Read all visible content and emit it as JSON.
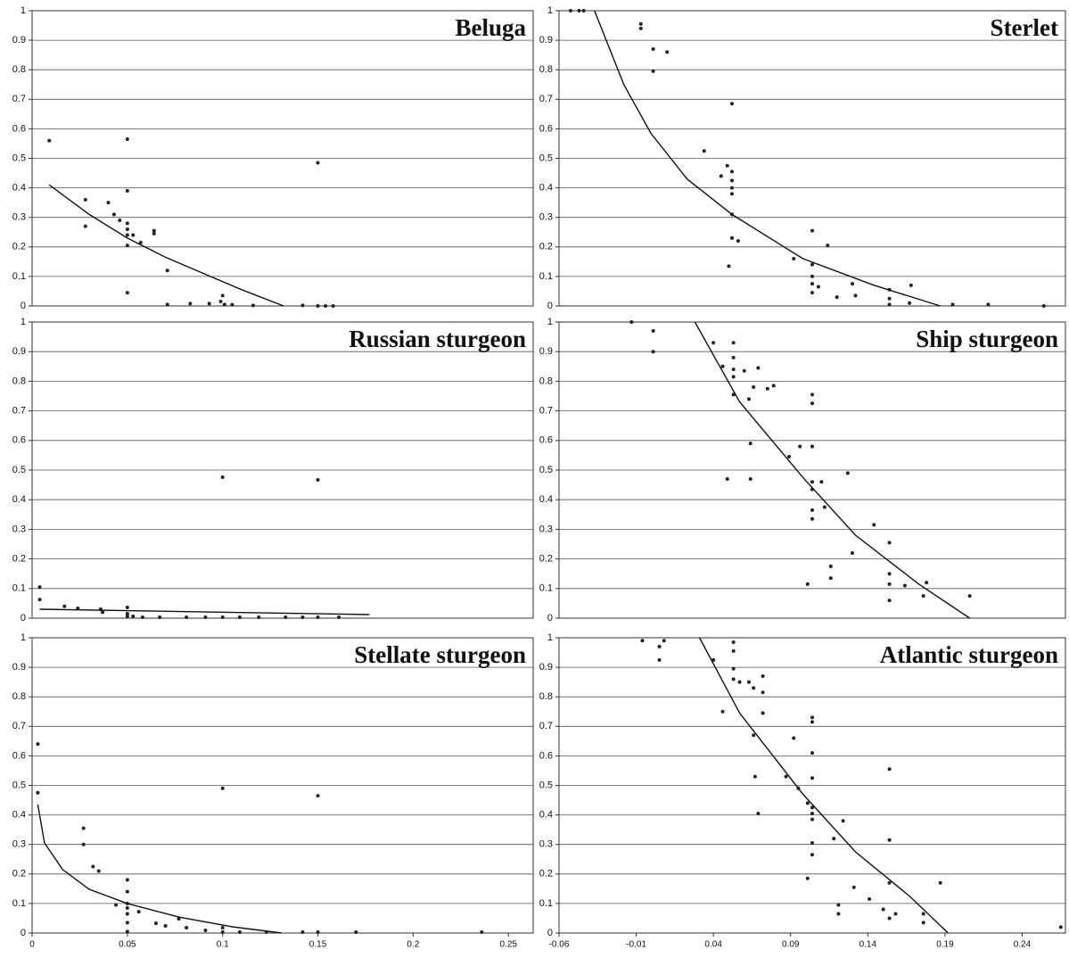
{
  "chart_data": [
    {
      "type": "scatter",
      "title": "Beluga",
      "color": "#222222",
      "fit_color": "#111111",
      "x": [
        0.009,
        0.028,
        0.028,
        0.04,
        0.043,
        0.046,
        0.05,
        0.05,
        0.05,
        0.05,
        0.05,
        0.05,
        0.05,
        0.053,
        0.057,
        0.064,
        0.064,
        0.071,
        0.071,
        0.083,
        0.093,
        0.099,
        0.1,
        0.101,
        0.105,
        0.116,
        0.142,
        0.15,
        0.15,
        0.154,
        0.158
      ],
      "values": [
        0.56,
        0.36,
        0.27,
        0.35,
        0.31,
        0.29,
        0.565,
        0.39,
        0.28,
        0.26,
        0.24,
        0.205,
        0.045,
        0.24,
        0.215,
        0.255,
        0.245,
        0.12,
        0.005,
        0.008,
        0.008,
        0.015,
        0.035,
        0.005,
        0.004,
        0.002,
        0.002,
        0.485,
        0,
        0,
        0
      ],
      "fit_x": [
        0.009,
        0.03,
        0.05,
        0.07,
        0.09,
        0.11,
        0.132
      ],
      "fit_values": [
        0.41,
        0.31,
        0.23,
        0.165,
        0.11,
        0.055,
        0
      ],
      "xlim": [
        0,
        0.263
      ],
      "ylim": [
        0,
        1
      ],
      "yticks": [
        0,
        0.1,
        0.2,
        0.3,
        0.4,
        0.5,
        0.6,
        0.7,
        0.8,
        0.9,
        1
      ],
      "grid": true
    },
    {
      "type": "scatter",
      "title": "Sterlet",
      "color": "#222222",
      "fit_color": "#111111",
      "x": [
        -0.0525,
        -0.047,
        -0.044,
        -0.007,
        -0.007,
        0.001,
        0.001,
        0.01,
        0.034,
        0.045,
        0.049,
        0.052,
        0.052,
        0.052,
        0.052,
        0.052,
        0.052,
        0.052,
        0.05,
        0.056,
        0.092,
        0.104,
        0.104,
        0.104,
        0.104,
        0.104,
        0.108,
        0.114,
        0.12,
        0.13,
        0.132,
        0.154,
        0.154,
        0.154,
        0.167,
        0.168,
        0.195,
        0.218,
        0.254
      ],
      "values": [
        1,
        1,
        1,
        0.955,
        0.94,
        0.87,
        0.795,
        0.86,
        0.525,
        0.44,
        0.475,
        0.685,
        0.455,
        0.425,
        0.4,
        0.38,
        0.31,
        0.23,
        0.135,
        0.22,
        0.16,
        0.255,
        0.14,
        0.1,
        0.075,
        0.045,
        0.065,
        0.205,
        0.03,
        0.075,
        0.035,
        0.055,
        0.025,
        0.005,
        0.01,
        0.07,
        0.005,
        0.005,
        0
      ],
      "fit_x": [
        -0.037,
        -0.018,
        -0.0005,
        0.023,
        0.052,
        0.098,
        0.144,
        0.187
      ],
      "fit_values": [
        1,
        0.75,
        0.585,
        0.43,
        0.31,
        0.16,
        0.07,
        0
      ],
      "xlim": [
        -0.06,
        0.268
      ],
      "ylim": [
        0,
        1
      ],
      "yticks": [
        0,
        0.1,
        0.2,
        0.3,
        0.4,
        0.5,
        0.6,
        0.7,
        0.8,
        0.9,
        1
      ],
      "grid": true
    },
    {
      "type": "scatter",
      "title": "Russian sturgeon",
      "color": "#222222",
      "fit_color": "#111111",
      "x": [
        0.004,
        0.004,
        0.017,
        0.024,
        0.036,
        0.037,
        0.05,
        0.05,
        0.05,
        0.053,
        0.058,
        0.067,
        0.081,
        0.091,
        0.1,
        0.1,
        0.109,
        0.119,
        0.133,
        0.142,
        0.15,
        0.15,
        0.161
      ],
      "values": [
        0.105,
        0.063,
        0.04,
        0.033,
        0.03,
        0.02,
        0.036,
        0.015,
        0.006,
        0.006,
        0.003,
        0.003,
        0.003,
        0.003,
        0.476,
        0.003,
        0.003,
        0.003,
        0.003,
        0.003,
        0.467,
        0.003,
        0.003
      ],
      "fit_x": [
        0.004,
        0.177
      ],
      "fit_values": [
        0.03,
        0.012
      ],
      "xlim": [
        0,
        0.263
      ],
      "ylim": [
        0,
        1
      ],
      "yticks": [
        0,
        0.1,
        0.2,
        0.3,
        0.4,
        0.5,
        0.6,
        0.7,
        0.8,
        0.9,
        1
      ],
      "grid": true
    },
    {
      "type": "scatter",
      "title": "Ship sturgeon",
      "color": "#222222",
      "fit_color": "#111111",
      "x": [
        -0.013,
        0.001,
        0.001,
        0.04,
        0.046,
        0.053,
        0.053,
        0.053,
        0.053,
        0.053,
        0.06,
        0.063,
        0.066,
        0.069,
        0.075,
        0.079,
        0.049,
        0.064,
        0.064,
        0.089,
        0.096,
        0.104,
        0.104,
        0.104,
        0.104,
        0.104,
        0.104,
        0.104,
        0.11,
        0.112,
        0.101,
        0.116,
        0.116,
        0.127,
        0.13,
        0.144,
        0.154,
        0.154,
        0.154,
        0.154,
        0.164,
        0.178,
        0.176,
        0.206
      ],
      "values": [
        1,
        0.97,
        0.9,
        0.93,
        0.85,
        0.93,
        0.88,
        0.84,
        0.815,
        0.755,
        0.835,
        0.74,
        0.78,
        0.845,
        0.775,
        0.785,
        0.47,
        0.47,
        0.59,
        0.545,
        0.58,
        0.755,
        0.725,
        0.58,
        0.46,
        0.435,
        0.365,
        0.335,
        0.46,
        0.375,
        0.115,
        0.175,
        0.135,
        0.49,
        0.22,
        0.315,
        0.255,
        0.15,
        0.115,
        0.06,
        0.11,
        0.12,
        0.075,
        0.075
      ],
      "fit_x": [
        0.028,
        0.057,
        0.098,
        0.132,
        0.173,
        0.206
      ],
      "fit_values": [
        1,
        0.73,
        0.475,
        0.28,
        0.115,
        0
      ],
      "xlim": [
        -0.06,
        0.268
      ],
      "ylim": [
        0,
        1
      ],
      "yticks": [
        0,
        0.1,
        0.2,
        0.3,
        0.4,
        0.5,
        0.6,
        0.7,
        0.8,
        0.9,
        1
      ],
      "grid": true
    },
    {
      "type": "scatter",
      "title": "Stellate sturgeon",
      "color": "#222222",
      "fit_color": "#111111",
      "x": [
        0.003,
        0.003,
        0.027,
        0.027,
        0.032,
        0.035,
        0.044,
        0.05,
        0.05,
        0.05,
        0.05,
        0.05,
        0.05,
        0.05,
        0.056,
        0.065,
        0.07,
        0.077,
        0.081,
        0.091,
        0.1,
        0.1,
        0.1,
        0.109,
        0.123,
        0.142,
        0.15,
        0.15,
        0.17,
        0.236
      ],
      "values": [
        0.64,
        0.475,
        0.355,
        0.3,
        0.225,
        0.21,
        0.095,
        0.18,
        0.14,
        0.1,
        0.085,
        0.065,
        0.035,
        0.005,
        0.072,
        0.033,
        0.024,
        0.048,
        0.018,
        0.009,
        0.49,
        0.018,
        0.003,
        0.003,
        0.003,
        0.003,
        0.465,
        0.003,
        0.003,
        0.003
      ],
      "fit_x": [
        0.003,
        0.0065,
        0.016,
        0.03,
        0.05,
        0.077,
        0.105,
        0.131
      ],
      "fit_values": [
        0.435,
        0.305,
        0.215,
        0.148,
        0.1,
        0.054,
        0.021,
        0
      ],
      "xlim": [
        0,
        0.263
      ],
      "ylim": [
        0,
        1
      ],
      "yticks": [
        0,
        0.1,
        0.2,
        0.3,
        0.4,
        0.5,
        0.6,
        0.7,
        0.8,
        0.9,
        1
      ],
      "xticks": [
        0,
        0.05,
        0.1,
        0.15,
        0.2,
        0.25
      ],
      "grid": true
    },
    {
      "type": "scatter",
      "title": "Atlantic sturgeon",
      "color": "#222222",
      "fit_color": "#111111",
      "x": [
        -0.006,
        0.005,
        0.005,
        0.008,
        0.04,
        0.046,
        0.053,
        0.053,
        0.053,
        0.053,
        0.057,
        0.063,
        0.066,
        0.072,
        0.072,
        0.072,
        0.066,
        0.067,
        0.069,
        0.092,
        0.087,
        0.095,
        0.101,
        0.104,
        0.104,
        0.104,
        0.104,
        0.104,
        0.104,
        0.104,
        0.104,
        0.104,
        0.101,
        0.118,
        0.124,
        0.121,
        0.121,
        0.131,
        0.141,
        0.15,
        0.154,
        0.154,
        0.154,
        0.154,
        0.158,
        0.176,
        0.176,
        0.187,
        0.265
      ],
      "values": [
        0.99,
        0.97,
        0.925,
        0.99,
        0.925,
        0.75,
        0.985,
        0.955,
        0.895,
        0.86,
        0.85,
        0.85,
        0.83,
        0.87,
        0.815,
        0.745,
        0.67,
        0.53,
        0.405,
        0.66,
        0.53,
        0.49,
        0.44,
        0.73,
        0.715,
        0.61,
        0.525,
        0.425,
        0.405,
        0.385,
        0.305,
        0.265,
        0.185,
        0.32,
        0.38,
        0.095,
        0.065,
        0.155,
        0.115,
        0.08,
        0.555,
        0.315,
        0.17,
        0.05,
        0.065,
        0.065,
        0.035,
        0.17,
        0.02
      ],
      "fit_x": [
        0.031,
        0.057,
        0.098,
        0.132,
        0.167,
        0.192
      ],
      "fit_values": [
        1,
        0.745,
        0.47,
        0.275,
        0.125,
        0
      ],
      "xlim": [
        -0.06,
        0.268
      ],
      "ylim": [
        0,
        1
      ],
      "yticks": [
        0,
        0.1,
        0.2,
        0.3,
        0.4,
        0.5,
        0.6,
        0.7,
        0.8,
        0.9,
        1
      ],
      "xticks": [
        -0.06,
        -0.01,
        0.04,
        0.09,
        0.14,
        0.19,
        0.24
      ],
      "grid": true
    }
  ]
}
